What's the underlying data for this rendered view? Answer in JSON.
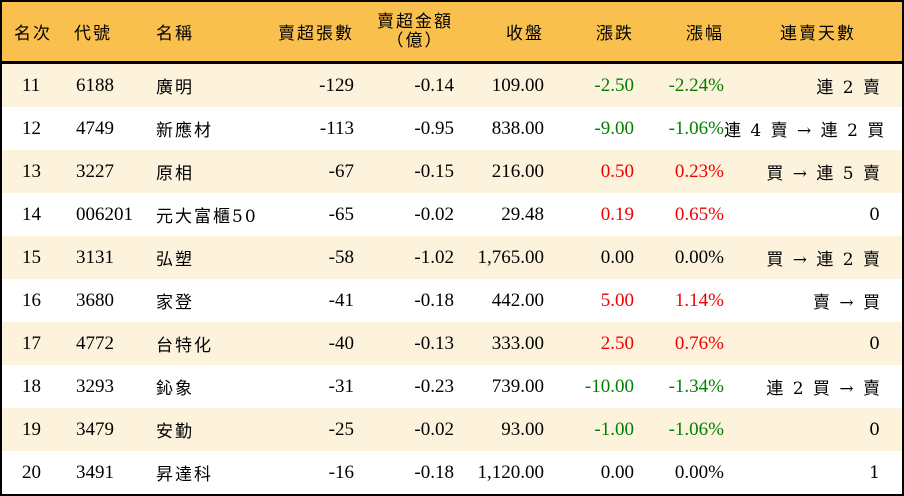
{
  "table": {
    "headers": {
      "rank": "名次",
      "code": "代號",
      "name": "名稱",
      "net_sell_lots": "賣超張數",
      "net_sell_amount_line1": "賣超金額",
      "net_sell_amount_line2": "（億）",
      "close": "收盤",
      "change": "漲跌",
      "change_pct": "漲幅",
      "streak": "連賣天數"
    },
    "colors": {
      "header_bg": "#f9c04d",
      "odd_row_bg": "#fdf3dd",
      "even_row_bg": "#ffffff",
      "up": "#ee0000",
      "down": "#008000"
    },
    "rows": [
      {
        "rank": "11",
        "code": "6188",
        "name": "廣明",
        "net_sell_lots": "-129",
        "net_sell_amount": "-0.14",
        "close": "109.00",
        "change": "-2.50",
        "change_pct": "-2.24%",
        "direction": "down",
        "streak": "連 2 賣"
      },
      {
        "rank": "12",
        "code": "4749",
        "name": "新應材",
        "net_sell_lots": "-113",
        "net_sell_amount": "-0.95",
        "close": "838.00",
        "change": "-9.00",
        "change_pct": "-1.06%",
        "direction": "down",
        "streak": "連 4 賣 → 連 2 買"
      },
      {
        "rank": "13",
        "code": "3227",
        "name": "原相",
        "net_sell_lots": "-67",
        "net_sell_amount": "-0.15",
        "close": "216.00",
        "change": "0.50",
        "change_pct": "0.23%",
        "direction": "up",
        "streak": "買 → 連 5 賣"
      },
      {
        "rank": "14",
        "code": "006201",
        "name": "元大富櫃50",
        "net_sell_lots": "-65",
        "net_sell_amount": "-0.02",
        "close": "29.48",
        "change": "0.19",
        "change_pct": "0.65%",
        "direction": "up",
        "streak": "0"
      },
      {
        "rank": "15",
        "code": "3131",
        "name": "弘塑",
        "net_sell_lots": "-58",
        "net_sell_amount": "-1.02",
        "close": "1,765.00",
        "change": "0.00",
        "change_pct": "0.00%",
        "direction": "flat",
        "streak": "買 → 連 2 賣"
      },
      {
        "rank": "16",
        "code": "3680",
        "name": "家登",
        "net_sell_lots": "-41",
        "net_sell_amount": "-0.18",
        "close": "442.00",
        "change": "5.00",
        "change_pct": "1.14%",
        "direction": "up",
        "streak": "賣 → 買"
      },
      {
        "rank": "17",
        "code": "4772",
        "name": "台特化",
        "net_sell_lots": "-40",
        "net_sell_amount": "-0.13",
        "close": "333.00",
        "change": "2.50",
        "change_pct": "0.76%",
        "direction": "up",
        "streak": "0"
      },
      {
        "rank": "18",
        "code": "3293",
        "name": "鈊象",
        "net_sell_lots": "-31",
        "net_sell_amount": "-0.23",
        "close": "739.00",
        "change": "-10.00",
        "change_pct": "-1.34%",
        "direction": "down",
        "streak": "連 2 買 → 賣"
      },
      {
        "rank": "19",
        "code": "3479",
        "name": "安勤",
        "net_sell_lots": "-25",
        "net_sell_amount": "-0.02",
        "close": "93.00",
        "change": "-1.00",
        "change_pct": "-1.06%",
        "direction": "down",
        "streak": "0"
      },
      {
        "rank": "20",
        "code": "3491",
        "name": "昇達科",
        "net_sell_lots": "-16",
        "net_sell_amount": "-0.18",
        "close": "1,120.00",
        "change": "0.00",
        "change_pct": "0.00%",
        "direction": "flat",
        "streak": "1"
      }
    ]
  }
}
